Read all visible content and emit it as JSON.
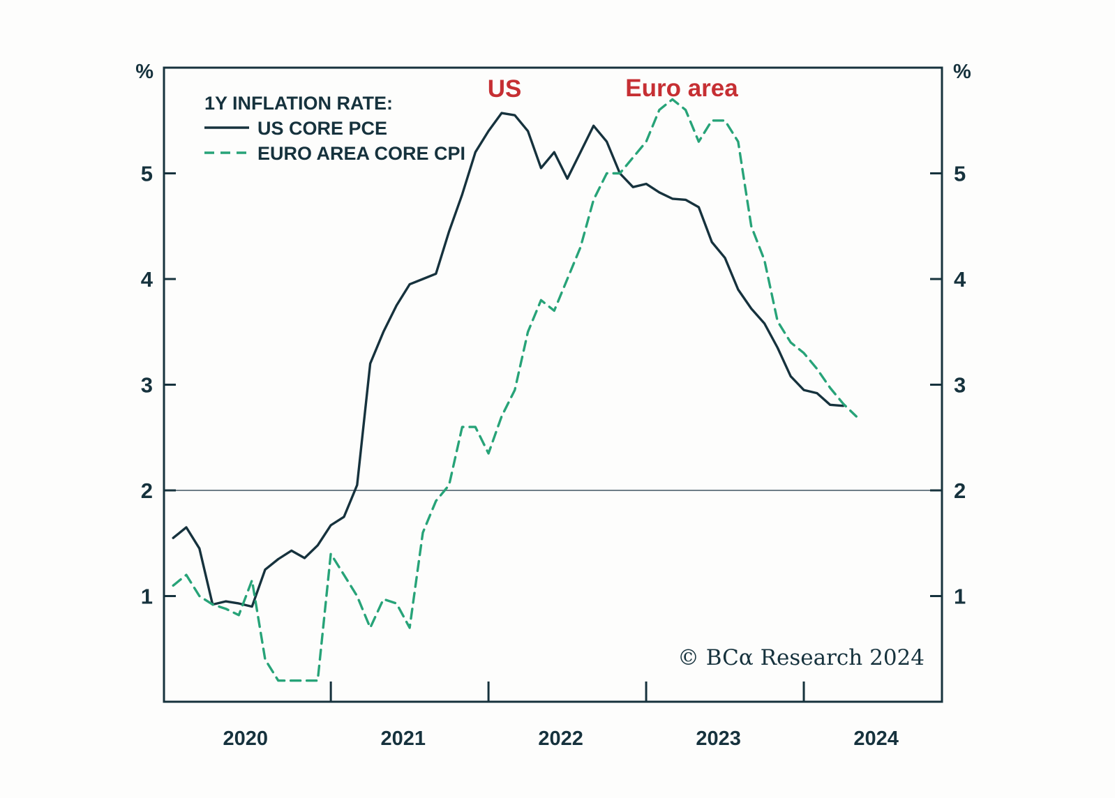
{
  "chart_data": {
    "type": "line",
    "legend_title": "1Y INFLATION RATE:",
    "unit": "%",
    "x_axis": {
      "frequency": "monthly",
      "start_month": "2020-01",
      "years": [
        2020,
        2021,
        2022,
        2023,
        2024
      ],
      "tick_year_boundaries": [
        2021,
        2022,
        2023,
        2024
      ]
    },
    "y_axis": {
      "min": 0,
      "max": 6,
      "ticks": [
        1,
        2,
        3,
        4,
        5
      ],
      "unit": "%"
    },
    "reference_line": {
      "value": 2
    },
    "series": [
      {
        "name": "US CORE PCE",
        "style": "solid",
        "color": "#16323d",
        "start": "2020-01",
        "end": "2024-04",
        "values": [
          1.55,
          1.65,
          1.45,
          0.92,
          0.95,
          0.93,
          0.9,
          1.25,
          1.35,
          1.43,
          1.36,
          1.48,
          1.67,
          1.75,
          2.05,
          3.2,
          3.5,
          3.75,
          3.95,
          4.0,
          4.05,
          4.45,
          4.8,
          5.2,
          5.4,
          5.57,
          5.55,
          5.4,
          5.05,
          5.2,
          4.95,
          5.2,
          5.45,
          5.3,
          5.0,
          4.87,
          4.9,
          4.82,
          4.76,
          4.75,
          4.68,
          4.35,
          4.2,
          3.9,
          3.72,
          3.58,
          3.35,
          3.08,
          2.95,
          2.92,
          2.81,
          2.8
        ]
      },
      {
        "name": "EURO AREA CORE CPI",
        "style": "dashed",
        "color": "#27a378",
        "start": "2020-01",
        "end": "2024-05",
        "values": [
          1.1,
          1.2,
          1.0,
          0.92,
          0.88,
          0.82,
          1.15,
          0.4,
          0.2,
          0.2,
          0.2,
          0.2,
          1.4,
          1.2,
          1.0,
          0.7,
          0.97,
          0.93,
          0.7,
          1.6,
          1.9,
          2.05,
          2.6,
          2.6,
          2.35,
          2.7,
          2.95,
          3.5,
          3.8,
          3.7,
          4.0,
          4.3,
          4.75,
          5.0,
          5.0,
          5.15,
          5.3,
          5.6,
          5.7,
          5.6,
          5.3,
          5.5,
          5.5,
          5.3,
          4.5,
          4.18,
          3.6,
          3.4,
          3.3,
          3.15,
          2.97,
          2.82,
          2.7
        ]
      }
    ],
    "annotations": [
      {
        "text": "US",
        "month": 25.2,
        "value": 5.8
      },
      {
        "text": "Euro area",
        "month": 38.7,
        "value": 5.81
      }
    ],
    "legend_position": "top-left",
    "grid": "single horizontal line at 2%"
  },
  "footer": {
    "copyright": "© BCα Research 2024",
    "copyright_color": "#41bd87"
  },
  "colors": {
    "axis": "#16323d",
    "us_line": "#16323d",
    "euro_line": "#27a378",
    "annotation_red": "#c62f33",
    "reference_line": "#6f7f88",
    "background": "#fdfdfc"
  }
}
